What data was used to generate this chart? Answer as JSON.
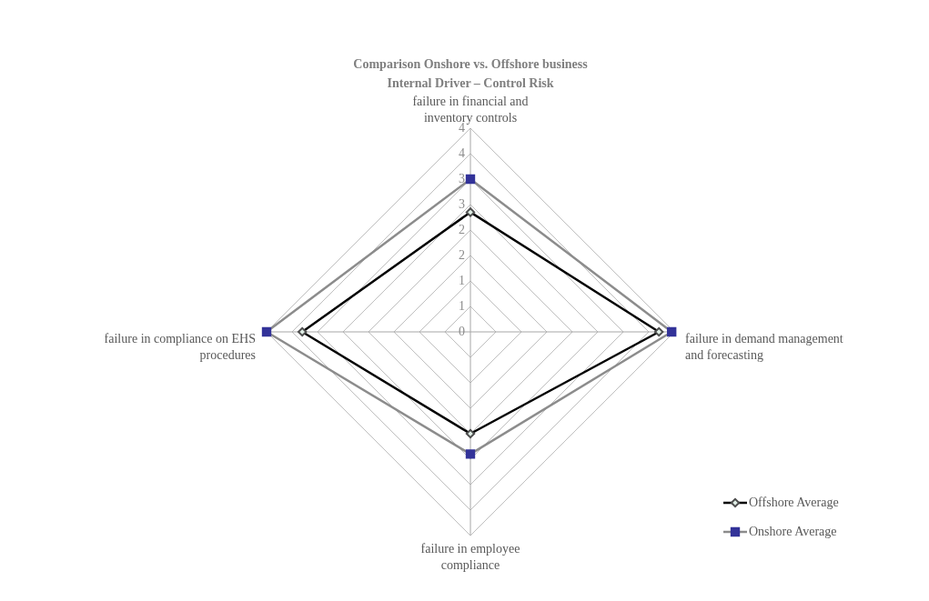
{
  "chart_data": {
    "type": "radar",
    "title": "Comparison Onshore vs. Offshore business",
    "subtitle": "Internal Driver – Control Risk",
    "categories": [
      "failure in financial and inventory controls",
      "failure in demand management and forecasting",
      "failure in employee compliance",
      "failure in compliance on EHS procedures"
    ],
    "series": [
      {
        "name": "Offshore Average",
        "color": "#000000",
        "marker": "diamond",
        "values": [
          2.35,
          3.7,
          2.0,
          3.3
        ]
      },
      {
        "name": "Onshore Average",
        "color": "#8c8c8c",
        "marker": "square",
        "values": [
          3.0,
          3.95,
          2.4,
          4.0
        ]
      }
    ],
    "ylim": [
      0,
      4
    ],
    "yticks": [
      {
        "value": 0,
        "label": "0"
      },
      {
        "value": 0.5,
        "label": "1"
      },
      {
        "value": 1,
        "label": "1"
      },
      {
        "value": 1.5,
        "label": "2"
      },
      {
        "value": 2,
        "label": "2"
      },
      {
        "value": 2.5,
        "label": "3"
      },
      {
        "value": 3,
        "label": "3"
      },
      {
        "value": 3.5,
        "label": "4"
      },
      {
        "value": 4,
        "label": "4"
      }
    ],
    "grid": true,
    "legend": "bottom right"
  }
}
